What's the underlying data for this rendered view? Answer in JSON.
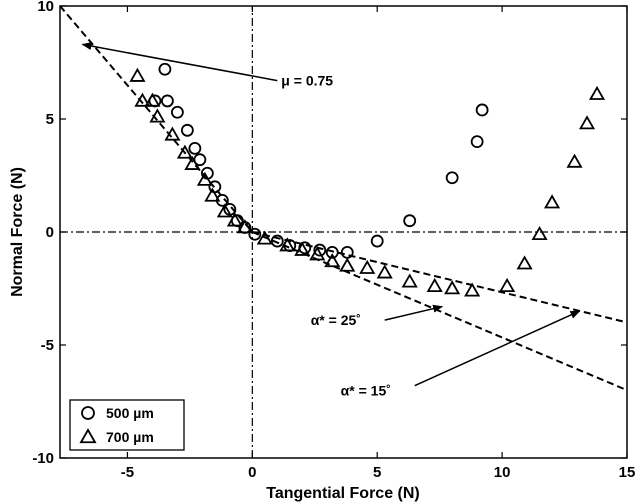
{
  "chart_data": {
    "type": "scatter",
    "xlabel": "Tangential Force (N)",
    "ylabel": "Normal Force (N)",
    "xlim": [
      -7.7,
      15
    ],
    "ylim": [
      -10,
      10
    ],
    "xticks": [
      -5,
      0,
      5,
      10,
      15
    ],
    "yticks": [
      -10,
      -5,
      0,
      5,
      10
    ],
    "grid": false,
    "legend_position": "bottom-left",
    "series": [
      {
        "name": "500 µm",
        "marker": "circle",
        "color": "#000000",
        "points": [
          [
            -3.5,
            7.2
          ],
          [
            -3.9,
            5.8
          ],
          [
            -3.4,
            5.8
          ],
          [
            -3.0,
            5.3
          ],
          [
            -2.6,
            4.5
          ],
          [
            -2.3,
            3.7
          ],
          [
            -2.1,
            3.2
          ],
          [
            -1.8,
            2.6
          ],
          [
            -1.5,
            2.0
          ],
          [
            -1.2,
            1.4
          ],
          [
            -0.9,
            1.0
          ],
          [
            -0.6,
            0.5
          ],
          [
            -0.3,
            0.2
          ],
          [
            0.1,
            -0.1
          ],
          [
            1.0,
            -0.4
          ],
          [
            1.5,
            -0.6
          ],
          [
            2.1,
            -0.7
          ],
          [
            2.7,
            -0.8
          ],
          [
            3.2,
            -0.9
          ],
          [
            3.8,
            -0.9
          ],
          [
            5.0,
            -0.4
          ],
          [
            6.3,
            0.5
          ],
          [
            8.0,
            2.4
          ],
          [
            9.0,
            4.0
          ],
          [
            9.2,
            5.4
          ]
        ]
      },
      {
        "name": "700 µm",
        "marker": "triangle",
        "color": "#000000",
        "points": [
          [
            -4.6,
            6.9
          ],
          [
            -4.4,
            5.8
          ],
          [
            -4.0,
            5.8
          ],
          [
            -3.8,
            5.1
          ],
          [
            -3.2,
            4.3
          ],
          [
            -2.7,
            3.5
          ],
          [
            -2.4,
            3.0
          ],
          [
            -1.9,
            2.3
          ],
          [
            -1.6,
            1.6
          ],
          [
            -1.1,
            0.9
          ],
          [
            -0.7,
            0.5
          ],
          [
            -0.3,
            0.2
          ],
          [
            0.5,
            -0.3
          ],
          [
            1.4,
            -0.6
          ],
          [
            2.0,
            -0.8
          ],
          [
            2.6,
            -1.0
          ],
          [
            3.2,
            -1.3
          ],
          [
            3.8,
            -1.5
          ],
          [
            4.6,
            -1.6
          ],
          [
            5.3,
            -1.8
          ],
          [
            6.3,
            -2.2
          ],
          [
            7.3,
            -2.4
          ],
          [
            8.0,
            -2.5
          ],
          [
            8.8,
            -2.6
          ],
          [
            10.2,
            -2.4
          ],
          [
            10.9,
            -1.4
          ],
          [
            11.5,
            -0.1
          ],
          [
            12.0,
            1.3
          ],
          [
            12.9,
            3.1
          ],
          [
            13.4,
            4.8
          ],
          [
            13.8,
            6.1
          ]
        ]
      }
    ],
    "reference_lines": [
      {
        "kind": "dashed",
        "points": [
          [
            -7.7,
            10.0
          ],
          [
            0,
            0
          ]
        ]
      },
      {
        "kind": "dashed",
        "points": [
          [
            0,
            0
          ],
          [
            15,
            -4.0
          ]
        ]
      },
      {
        "kind": "dashed",
        "points": [
          [
            0,
            0
          ],
          [
            15,
            -7.0
          ]
        ]
      },
      {
        "kind": "dashdot",
        "points": [
          [
            -7.7,
            0
          ],
          [
            15,
            0
          ]
        ]
      },
      {
        "kind": "dashdot",
        "points": [
          [
            0,
            -10
          ],
          [
            0,
            10
          ]
        ]
      }
    ],
    "annotations": [
      {
        "text": "μ = 0.75",
        "arrow_from": [
          1.0,
          6.7
        ],
        "arrow_to": [
          -6.8,
          8.3
        ]
      },
      {
        "text": "α* = 25˚",
        "arrow_from": [
          5.3,
          -3.9
        ],
        "arrow_to": [
          7.6,
          -3.3
        ]
      },
      {
        "text": "α* = 15˚",
        "arrow_from": [
          6.5,
          -6.8
        ],
        "arrow_to": [
          13.1,
          -3.5
        ]
      }
    ]
  }
}
